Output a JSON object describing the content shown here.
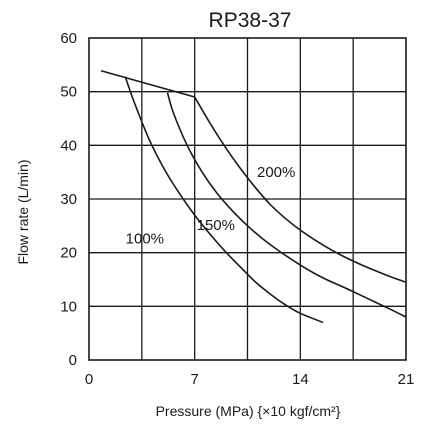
{
  "chart_data": {
    "type": "line",
    "title": "RP38-37",
    "xlabel": "Pressure (MPa) {×10 kgf/cm²}",
    "ylabel": "Flow rate (L/min)",
    "xlim": [
      0,
      21
    ],
    "ylim": [
      0,
      60
    ],
    "xticks": [
      "0",
      "7",
      "14",
      "21"
    ],
    "yticks": [
      "0",
      "10",
      "20",
      "30",
      "40",
      "50",
      "60"
    ],
    "grid": true,
    "series": [
      {
        "name": "100%",
        "x": [
          2.4,
          3.0,
          4.0,
          5.0,
          6.0,
          7.0,
          8.0,
          9.0,
          10.0,
          11.0,
          12.0,
          13.0,
          14.0,
          15.5
        ],
        "y": [
          52.8,
          48.0,
          41.0,
          35.5,
          31.0,
          27.0,
          23.5,
          20.3,
          17.4,
          14.6,
          12.3,
          10.3,
          8.7,
          7.0
        ]
      },
      {
        "name": "150%",
        "x": [
          5.2,
          5.6,
          6.5,
          7.5,
          8.5,
          9.5,
          10.5,
          11.5,
          12.5,
          14.0,
          15.5,
          17.0,
          18.5,
          20.0,
          21.0
        ],
        "y": [
          49.8,
          46.0,
          40.0,
          35.0,
          31.0,
          27.8,
          25.0,
          22.6,
          20.5,
          17.7,
          15.3,
          13.4,
          11.4,
          9.4,
          8.0
        ]
      },
      {
        "name": "200%",
        "x": [
          7.0,
          8.0,
          9.0,
          10.0,
          11.0,
          12.0,
          13.0,
          14.0,
          15.0,
          16.0,
          17.0,
          18.0,
          19.0,
          20.0,
          21.0
        ],
        "y": [
          49.0,
          44.2,
          39.8,
          35.8,
          32.2,
          29.0,
          26.4,
          24.2,
          22.3,
          20.6,
          19.1,
          17.8,
          16.6,
          15.5,
          14.5
        ]
      },
      {
        "name": "",
        "x": [
          0.8,
          7.0
        ],
        "y": [
          53.9,
          49.0
        ]
      }
    ],
    "annotations": [
      {
        "text": "100%",
        "x": 3.7,
        "y": 21.7
      },
      {
        "text": "150%",
        "x": 8.4,
        "y": 24.2
      },
      {
        "text": "200%",
        "x": 12.4,
        "y": 34.1
      }
    ]
  }
}
